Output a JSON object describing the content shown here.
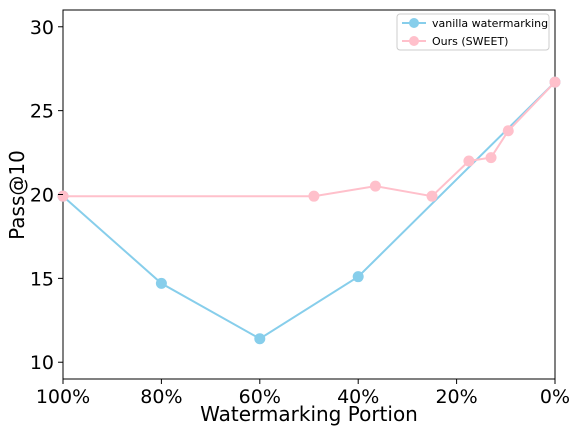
{
  "chart_data": {
    "type": "line",
    "xlabel": "Watermarking Portion",
    "ylabel": "Pass@10",
    "xlim": [
      100,
      0
    ],
    "ylim": [
      9,
      31
    ],
    "x_ticks": [
      100,
      80,
      60,
      40,
      20,
      0
    ],
    "x_tick_labels": [
      "100%",
      "80%",
      "60%",
      "40%",
      "20%",
      "0%"
    ],
    "y_ticks": [
      10,
      15,
      20,
      25,
      30
    ],
    "y_tick_labels": [
      "10",
      "15",
      "20",
      "25",
      "30"
    ],
    "grid": false,
    "legend_position": "top-right",
    "series": [
      {
        "name": "vanilla watermarking",
        "color": "#87CEEB",
        "x": [
          100,
          80,
          60,
          40,
          0
        ],
        "y": [
          19.9,
          14.7,
          11.4,
          15.1,
          26.7
        ]
      },
      {
        "name": "Ours (SWEET)",
        "color": "#FFC0CB",
        "x": [
          100,
          49,
          36.5,
          25,
          17.5,
          13,
          9.5,
          0
        ],
        "y": [
          19.9,
          19.9,
          20.5,
          19.9,
          22.0,
          22.2,
          23.8,
          26.7
        ]
      }
    ]
  }
}
